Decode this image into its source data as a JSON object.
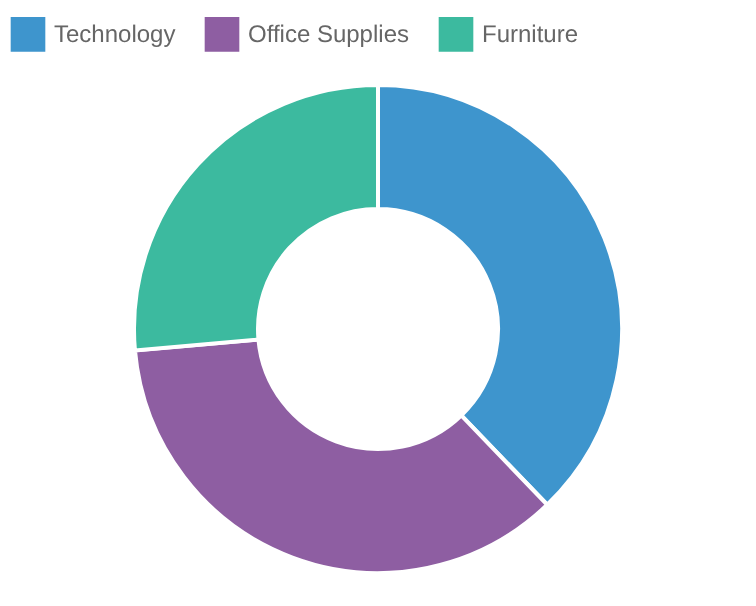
{
  "chart_data": {
    "type": "donut",
    "categories": [
      "Technology",
      "Office Supplies",
      "Furniture"
    ],
    "values": [
      37.8,
      35.8,
      26.4
    ],
    "colors": [
      "#3e95cd",
      "#8e5ea2",
      "#3cba9f"
    ],
    "legend": "top"
  }
}
